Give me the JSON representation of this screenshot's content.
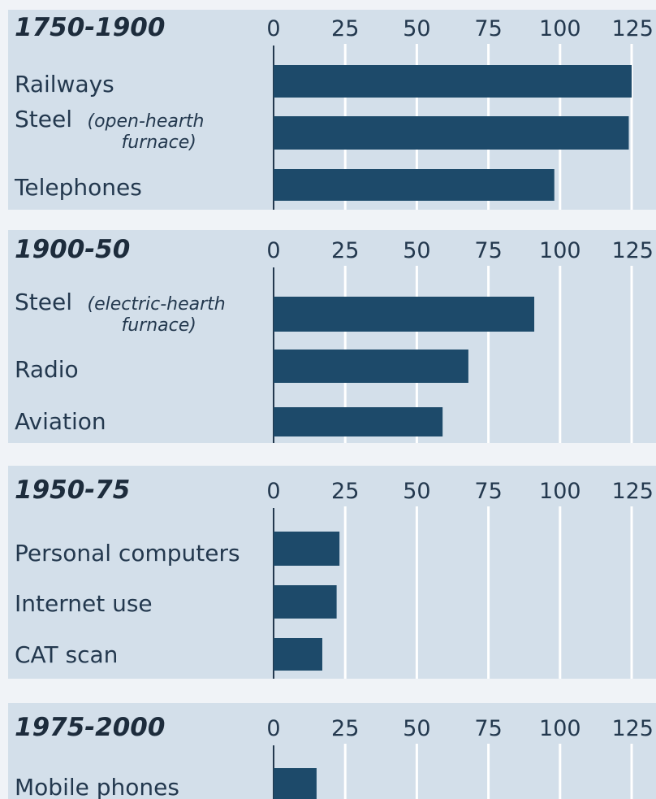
{
  "chart_data": {
    "type": "bar",
    "orientation": "horizontal",
    "tick_labels": [
      "0",
      "25",
      "50",
      "75",
      "100",
      "125"
    ],
    "xlim": [
      0,
      125
    ],
    "grid": true,
    "legend": "none",
    "colors": {
      "bar": "#1d4a6a",
      "panel": "#d3dfea",
      "gridline": "#ffffff"
    },
    "panels": [
      {
        "period": "1750-1900",
        "categories": [
          {
            "label": "Railways",
            "note": "",
            "value": 125
          },
          {
            "label": "Steel",
            "note": "(open-hearth furnace)",
            "note_lines": [
              "(open-hearth",
              "furnace)"
            ],
            "value": 124
          },
          {
            "label": "Telephones",
            "note": "",
            "value": 98
          }
        ]
      },
      {
        "period": "1900-50",
        "categories": [
          {
            "label": "Steel",
            "note": "(electric-hearth furnace)",
            "note_lines": [
              "(electric-hearth",
              "furnace)"
            ],
            "value": 91
          },
          {
            "label": "Radio",
            "note": "",
            "value": 68
          },
          {
            "label": "Aviation",
            "note": "",
            "value": 59
          }
        ]
      },
      {
        "period": "1950-75",
        "categories": [
          {
            "label": "Personal computers",
            "note": "",
            "value": 23
          },
          {
            "label": "Internet use",
            "note": "",
            "value": 22
          },
          {
            "label": "CAT scan",
            "note": "",
            "value": 17
          }
        ]
      },
      {
        "period": "1975-2000",
        "categories": [
          {
            "label": "Mobile phones",
            "note": "",
            "value": 15
          }
        ]
      }
    ]
  }
}
